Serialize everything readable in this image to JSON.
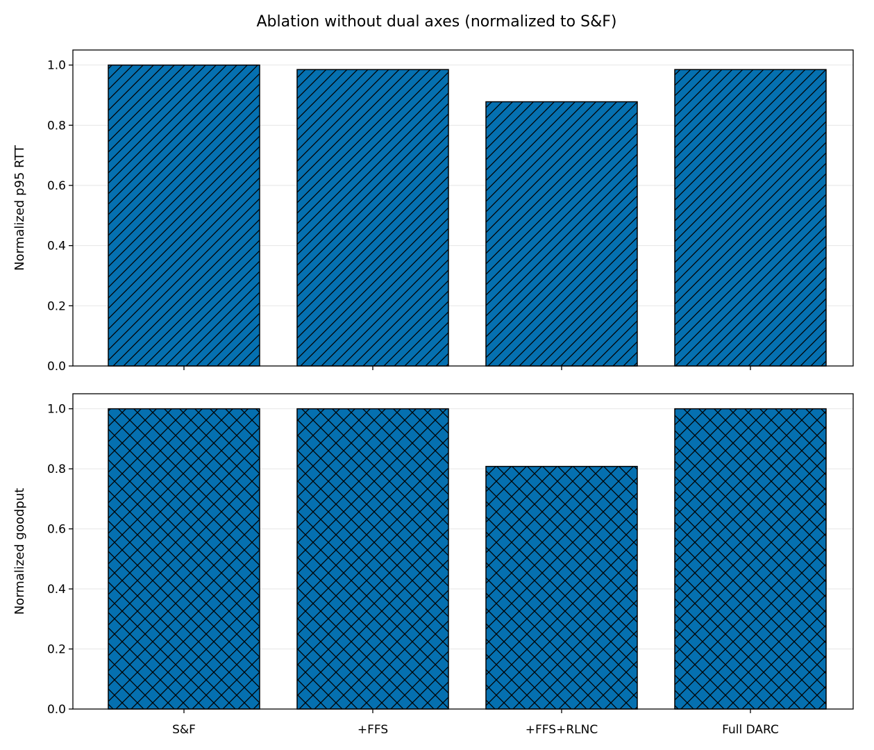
{
  "title": "Ablation without dual axes (normalized to S&F)",
  "colors": {
    "bar": "#0570b0",
    "edge": "#000000",
    "grid": "#e6e6e6"
  },
  "chart_data": [
    {
      "type": "bar",
      "categories": [
        "S&F",
        "+FFS",
        "+FFS+RLNC",
        "Full DARC"
      ],
      "values": [
        1.0,
        0.985,
        0.878,
        0.985
      ],
      "ylabel": "Normalized p95 RTT",
      "ylim": [
        0,
        1.05
      ],
      "yticks": [
        0.0,
        0.2,
        0.4,
        0.6,
        0.8,
        1.0
      ],
      "hatch": "diagonal",
      "grid": "y"
    },
    {
      "type": "bar",
      "categories": [
        "S&F",
        "+FFS",
        "+FFS+RLNC",
        "Full DARC"
      ],
      "values": [
        1.0,
        1.0,
        0.808,
        1.0
      ],
      "ylabel": "Normalized goodput",
      "ylim": [
        0,
        1.05
      ],
      "yticks": [
        0.0,
        0.2,
        0.4,
        0.6,
        0.8,
        1.0
      ],
      "hatch": "cross",
      "grid": "y"
    }
  ]
}
